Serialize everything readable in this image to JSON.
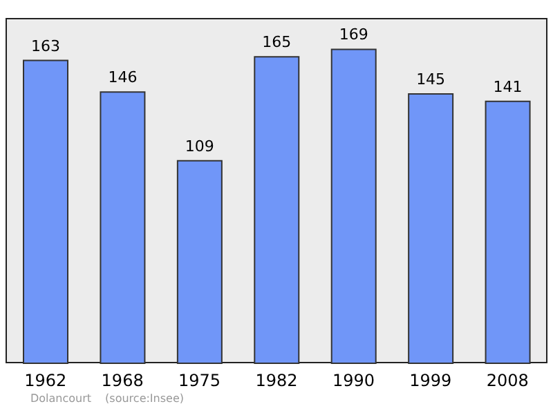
{
  "chart_data": {
    "type": "bar",
    "categories": [
      "1962",
      "1968",
      "1975",
      "1982",
      "1990",
      "1999",
      "2008"
    ],
    "values": [
      163,
      146,
      109,
      165,
      169,
      145,
      141
    ],
    "color": "#7096f8",
    "data_labels": true,
    "annotations": [
      "Dolancourt",
      "(source:Insee)"
    ]
  }
}
